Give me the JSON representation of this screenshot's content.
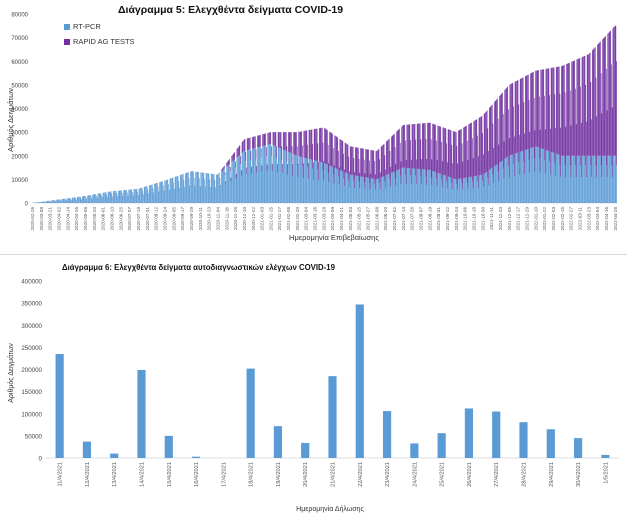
{
  "chart_data": [
    {
      "type": "bar",
      "stacked": true,
      "title": "Διάγραμμα 5: Ελεγχθέντα δείγματα COVID-19",
      "xlabel": "Ημερομηνία Επιβεβαίωσης",
      "ylabel": "Αριθμός Δειγμάτων",
      "ylim": [
        0,
        80000
      ],
      "yticks": [
        0,
        10000,
        20000,
        30000,
        40000,
        50000,
        60000,
        70000,
        80000
      ],
      "grid": false,
      "legend_position": "top-left",
      "x_start_date": "2020-02-26",
      "x_tick_labels": [
        "2020-02-26",
        "2020-03-09",
        "2020-03-21",
        "2020-04-02",
        "2020-04-14",
        "2020-04-26",
        "2020-05-08",
        "2020-05-20",
        "2020-06-01",
        "2020-06-13",
        "2020-06-25",
        "2020-07-07",
        "2020-07-19",
        "2020-07-31",
        "2020-08-12",
        "2020-08-24",
        "2020-09-05",
        "2020-09-17",
        "2020-09-29",
        "2020-10-11",
        "2020-10-23",
        "2020-11-04",
        "2020-11-16",
        "2020-11-28",
        "2020-12-10",
        "2020-12-22",
        "2021-01-03",
        "2021-01-15",
        "2021-01-27",
        "2021-02-08",
        "2021-02-20",
        "2021-03-04",
        "2021-03-16",
        "2021-03-28",
        "2021-04-09",
        "2021-04-21",
        "2021-05-03",
        "2021-05-15",
        "2021-05-27",
        "2021-06-08",
        "2021-06-20",
        "2021-07-02",
        "2021-07-14",
        "2021-07-26",
        "2021-08-07",
        "2021-08-19",
        "2021-08-31",
        "2021-09-12",
        "2021-09-24",
        "2021-10-06",
        "2021-10-18",
        "2021-10-30",
        "2021-11-11",
        "2021-11-23",
        "2021-12-05",
        "2021-12-17",
        "2021-12-29",
        "2022-01-10",
        "2022-01-22",
        "2022-02-03",
        "2022-02-15",
        "2022-02-27",
        "2022-03-11",
        "2022-03-23",
        "2022-04-04",
        "2022-04-16",
        "2022-04-28"
      ],
      "series": [
        {
          "name": "RT-PCR",
          "color": "#5b9bd5",
          "x": [
            "2020-02-26",
            "2020-04-02",
            "2020-05-08",
            "2020-06-13",
            "2020-07-19",
            "2020-08-24",
            "2020-09-29",
            "2020-11-04",
            "2020-12-10",
            "2021-01-15",
            "2021-02-20",
            "2021-03-28",
            "2021-05-03",
            "2021-06-08",
            "2021-07-14",
            "2021-08-19",
            "2021-09-24",
            "2021-10-30",
            "2021-12-05",
            "2022-01-10",
            "2022-02-15",
            "2022-03-23",
            "2022-04-28"
          ],
          "values": [
            0,
            1500,
            3000,
            5000,
            6000,
            9500,
            13500,
            12000,
            22000,
            25000,
            20000,
            17000,
            12000,
            10000,
            15000,
            14000,
            10000,
            12000,
            20000,
            24000,
            20000,
            20000,
            20000
          ]
        },
        {
          "name": "RAPID AG TESTS",
          "color": "#7030a0",
          "x": [
            "2020-02-26",
            "2020-04-02",
            "2020-05-08",
            "2020-06-13",
            "2020-07-19",
            "2020-08-24",
            "2020-09-29",
            "2020-11-04",
            "2020-12-10",
            "2021-01-15",
            "2021-02-20",
            "2021-03-28",
            "2021-05-03",
            "2021-06-08",
            "2021-07-14",
            "2021-08-19",
            "2021-09-24",
            "2021-10-30",
            "2021-12-05",
            "2022-01-10",
            "2022-02-15",
            "2022-03-23",
            "2022-04-28"
          ],
          "values": [
            0,
            0,
            0,
            0,
            0,
            0,
            0,
            0,
            5000,
            5000,
            10000,
            15000,
            12000,
            12000,
            18000,
            20000,
            20000,
            25000,
            30000,
            32000,
            38000,
            43000,
            55000
          ]
        }
      ]
    },
    {
      "type": "bar",
      "title": "Διάγραμμα 6: Ελεγχθέντα δείγματα αυτοδιαγνωστικών ελέγχων COVID-19",
      "xlabel": "Ημερομηνία Δήλωσης",
      "ylabel": "Αριθμός Δειγμάτων",
      "ylim": [
        0,
        400000
      ],
      "yticks": [
        0,
        50000,
        100000,
        150000,
        200000,
        250000,
        300000,
        350000,
        400000
      ],
      "grid": false,
      "categories": [
        "11/4/2021",
        "12/4/2021",
        "13/4/2021",
        "14/4/2021",
        "15/4/2021",
        "16/4/2021",
        "17/4/2021",
        "18/4/2021",
        "19/4/2021",
        "20/4/2021",
        "21/4/2021",
        "22/4/2021",
        "23/4/2021",
        "24/4/2021",
        "25/4/2021",
        "26/4/2021",
        "27/4/2021",
        "28/4/2021",
        "29/4/2021",
        "30/4/2021",
        "1/5/2021"
      ],
      "series": [
        {
          "name": "",
          "color": "#5b9bd5",
          "values": [
            235000,
            37000,
            10000,
            199000,
            50000,
            3000,
            0,
            202000,
            72000,
            34000,
            185000,
            347000,
            106000,
            33000,
            56000,
            112000,
            105000,
            81000,
            65000,
            45000,
            7000
          ]
        }
      ]
    }
  ]
}
